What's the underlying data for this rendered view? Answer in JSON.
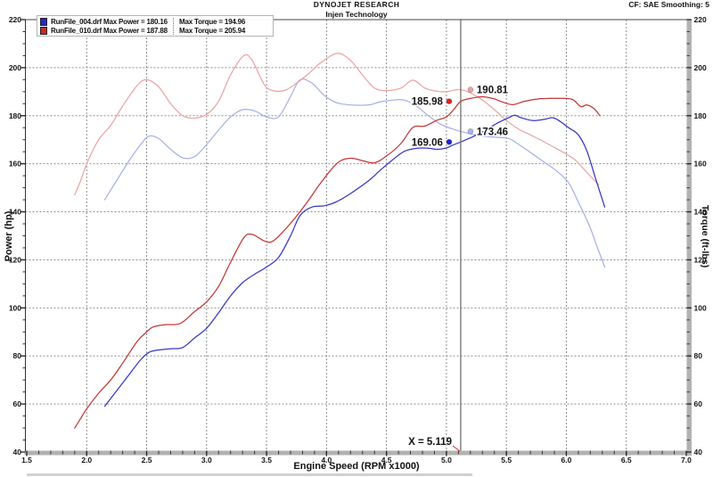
{
  "header": {
    "title": "DYNOJET RESEARCH",
    "subtitle": "Injen Technology",
    "correction": "CF: SAE  Smoothing: 5"
  },
  "legend": {
    "rows": [
      {
        "color": "#2828c8",
        "run_power": "RunFile_004.drf Max Power = 180.16",
        "torque": "Max Torque = 194.96"
      },
      {
        "color": "#c82828",
        "run_power": "RunFile_010.drf Max Power = 187.88",
        "torque": "Max Torque = 205.94"
      }
    ]
  },
  "cursor": {
    "x": 5.119,
    "label": "X = 5.119"
  },
  "markers": [
    {
      "series": "RunFile_010.drf Power",
      "label": "185.98",
      "value": 185.98,
      "side": "left",
      "color": "#e02020"
    },
    {
      "series": "RunFile_010.drf Torque",
      "label": "190.81",
      "value": 190.81,
      "side": "right",
      "color": "#f0a2a2"
    },
    {
      "series": "RunFile_004.drf Power",
      "label": "169.06",
      "value": 169.06,
      "side": "left",
      "color": "#2020d8"
    },
    {
      "series": "RunFile_004.drf Torque",
      "label": "173.46",
      "value": 173.46,
      "side": "right",
      "color": "#aab4ee"
    }
  ],
  "chart_data": {
    "type": "line",
    "title": "DYNOJET RESEARCH",
    "subtitle": "Injen Technology",
    "xlabel": "Engine Speed (RPM x1000)",
    "ylabel_left": "Power (hp)",
    "ylabel_right": "Torque (ft-lbs)",
    "xlim": [
      1.5,
      7.0
    ],
    "ylim": [
      40,
      220
    ],
    "x_major_step": 0.5,
    "x_minor_step": 0.1,
    "y_major_step": 20,
    "y_minor_step": 5,
    "grid": true,
    "legend_position": "top-left",
    "cursor_x": 5.119,
    "series": [
      {
        "name": "RunFile_004.drf Torque",
        "unit": "ft-lbs",
        "color": "#a6aee6",
        "width": 1.2,
        "points": [
          [
            2.15,
            145
          ],
          [
            2.25,
            153
          ],
          [
            2.35,
            161
          ],
          [
            2.45,
            168
          ],
          [
            2.52,
            171.5
          ],
          [
            2.6,
            170.5
          ],
          [
            2.7,
            166
          ],
          [
            2.8,
            162.5
          ],
          [
            2.9,
            163
          ],
          [
            3.0,
            168
          ],
          [
            3.1,
            174
          ],
          [
            3.2,
            179.5
          ],
          [
            3.3,
            182.5
          ],
          [
            3.4,
            182
          ],
          [
            3.5,
            179.5
          ],
          [
            3.6,
            179.5
          ],
          [
            3.7,
            188
          ],
          [
            3.78,
            194.96
          ],
          [
            3.88,
            193.5
          ],
          [
            3.98,
            188.5
          ],
          [
            4.08,
            185.5
          ],
          [
            4.2,
            184.5
          ],
          [
            4.35,
            184.5
          ],
          [
            4.45,
            185.8
          ],
          [
            4.55,
            186.5
          ],
          [
            4.65,
            186.5
          ],
          [
            4.75,
            184
          ],
          [
            4.85,
            180
          ],
          [
            4.95,
            176.5
          ],
          [
            5.05,
            174.5
          ],
          [
            5.119,
            173.46
          ],
          [
            5.2,
            172.5
          ],
          [
            5.3,
            171.5
          ],
          [
            5.42,
            171
          ],
          [
            5.52,
            170.5
          ],
          [
            5.62,
            167.5
          ],
          [
            5.72,
            164
          ],
          [
            5.82,
            160.5
          ],
          [
            5.92,
            157
          ],
          [
            6.02,
            152
          ],
          [
            6.1,
            144
          ],
          [
            6.19,
            134.5
          ],
          [
            6.26,
            125
          ],
          [
            6.32,
            117
          ]
        ]
      },
      {
        "name": "RunFile_010.drf Torque",
        "unit": "ft-lbs",
        "color": "#eaa2a2",
        "width": 1.2,
        "points": [
          [
            1.9,
            147
          ],
          [
            1.95,
            153
          ],
          [
            2.0,
            160
          ],
          [
            2.1,
            170
          ],
          [
            2.2,
            176
          ],
          [
            2.3,
            184
          ],
          [
            2.42,
            192.5
          ],
          [
            2.5,
            195
          ],
          [
            2.6,
            192
          ],
          [
            2.7,
            185
          ],
          [
            2.8,
            180
          ],
          [
            2.9,
            179
          ],
          [
            3.0,
            180.5
          ],
          [
            3.1,
            186
          ],
          [
            3.2,
            197
          ],
          [
            3.31,
            205
          ],
          [
            3.38,
            203
          ],
          [
            3.48,
            193
          ],
          [
            3.55,
            190.5
          ],
          [
            3.65,
            190.5
          ],
          [
            3.75,
            193.5
          ],
          [
            3.85,
            197.5
          ],
          [
            3.95,
            202
          ],
          [
            4.09,
            205.94
          ],
          [
            4.2,
            203
          ],
          [
            4.3,
            197
          ],
          [
            4.4,
            191.5
          ],
          [
            4.5,
            190.5
          ],
          [
            4.62,
            191.5
          ],
          [
            4.72,
            194.8
          ],
          [
            4.82,
            191.5
          ],
          [
            4.92,
            190.2
          ],
          [
            5.0,
            190
          ],
          [
            5.06,
            190.6
          ],
          [
            5.119,
            190.81
          ],
          [
            5.2,
            189.5
          ],
          [
            5.3,
            186.5
          ],
          [
            5.4,
            182.5
          ],
          [
            5.5,
            178
          ],
          [
            5.6,
            174.5
          ],
          [
            5.7,
            172
          ],
          [
            5.8,
            169.5
          ],
          [
            5.9,
            166.8
          ],
          [
            6.0,
            164
          ],
          [
            6.07,
            161.7
          ],
          [
            6.13,
            158.7
          ],
          [
            6.21,
            154.3
          ],
          [
            6.27,
            151.3
          ]
        ]
      },
      {
        "name": "RunFile_004.drf Power",
        "unit": "hp",
        "color": "#3636c4",
        "width": 1.25,
        "points": [
          [
            2.15,
            59
          ],
          [
            2.25,
            65.5
          ],
          [
            2.35,
            72
          ],
          [
            2.45,
            78.4
          ],
          [
            2.52,
            81.5
          ],
          [
            2.6,
            82.5
          ],
          [
            2.7,
            83
          ],
          [
            2.8,
            83.5
          ],
          [
            2.9,
            87.5
          ],
          [
            3.0,
            91.5
          ],
          [
            3.1,
            98
          ],
          [
            3.2,
            105
          ],
          [
            3.3,
            110.5
          ],
          [
            3.4,
            114
          ],
          [
            3.5,
            117
          ],
          [
            3.6,
            121
          ],
          [
            3.7,
            130
          ],
          [
            3.78,
            138.5
          ],
          [
            3.88,
            142
          ],
          [
            3.98,
            142.5
          ],
          [
            4.08,
            144.1
          ],
          [
            4.2,
            147.6
          ],
          [
            4.35,
            152.9
          ],
          [
            4.45,
            157.4
          ],
          [
            4.55,
            161.6
          ],
          [
            4.65,
            165.2
          ],
          [
            4.75,
            166.4
          ],
          [
            4.85,
            166.5
          ],
          [
            4.92,
            166
          ],
          [
            5.0,
            166.6
          ],
          [
            5.05,
            167.7
          ],
          [
            5.119,
            169.06
          ],
          [
            5.2,
            170.8
          ],
          [
            5.3,
            173.2
          ],
          [
            5.42,
            176.8
          ],
          [
            5.52,
            179.2
          ],
          [
            5.57,
            180.16
          ],
          [
            5.62,
            179.2
          ],
          [
            5.72,
            178
          ],
          [
            5.82,
            178.5
          ],
          [
            5.9,
            179
          ],
          [
            6.02,
            175
          ],
          [
            6.1,
            172
          ],
          [
            6.17,
            165.5
          ],
          [
            6.24,
            154.5
          ],
          [
            6.32,
            142
          ]
        ]
      },
      {
        "name": "RunFile_010.drf Power",
        "unit": "hp",
        "color": "#c43636",
        "width": 1.25,
        "points": [
          [
            1.9,
            50
          ],
          [
            1.95,
            54
          ],
          [
            2.0,
            58
          ],
          [
            2.1,
            64.5
          ],
          [
            2.2,
            70
          ],
          [
            2.3,
            77
          ],
          [
            2.42,
            86
          ],
          [
            2.5,
            90
          ],
          [
            2.55,
            92
          ],
          [
            2.65,
            93
          ],
          [
            2.78,
            93.5
          ],
          [
            2.9,
            98.5
          ],
          [
            3.0,
            102.5
          ],
          [
            3.1,
            109
          ],
          [
            3.2,
            119
          ],
          [
            3.31,
            129.2
          ],
          [
            3.38,
            130.6
          ],
          [
            3.48,
            127.9
          ],
          [
            3.55,
            127.7
          ],
          [
            3.65,
            132.4
          ],
          [
            3.75,
            138.2
          ],
          [
            3.85,
            144.8
          ],
          [
            3.95,
            151.9
          ],
          [
            4.09,
            160.3
          ],
          [
            4.2,
            162.3
          ],
          [
            4.3,
            161.3
          ],
          [
            4.4,
            160.4
          ],
          [
            4.5,
            163.2
          ],
          [
            4.62,
            168.4
          ],
          [
            4.72,
            175.1
          ],
          [
            4.82,
            175.7
          ],
          [
            4.92,
            178.1
          ],
          [
            5.0,
            179.5
          ],
          [
            5.06,
            182.5
          ],
          [
            5.119,
            185.98
          ],
          [
            5.2,
            187.2
          ],
          [
            5.3,
            187.88
          ],
          [
            5.4,
            187
          ],
          [
            5.45,
            186
          ],
          [
            5.55,
            184.6
          ],
          [
            5.65,
            186
          ],
          [
            5.75,
            186.9
          ],
          [
            5.85,
            187.2
          ],
          [
            5.95,
            187.2
          ],
          [
            6.05,
            186.8
          ],
          [
            6.12,
            183.8
          ],
          [
            6.17,
            184.5
          ],
          [
            6.23,
            183
          ],
          [
            6.28,
            180
          ]
        ]
      }
    ]
  }
}
